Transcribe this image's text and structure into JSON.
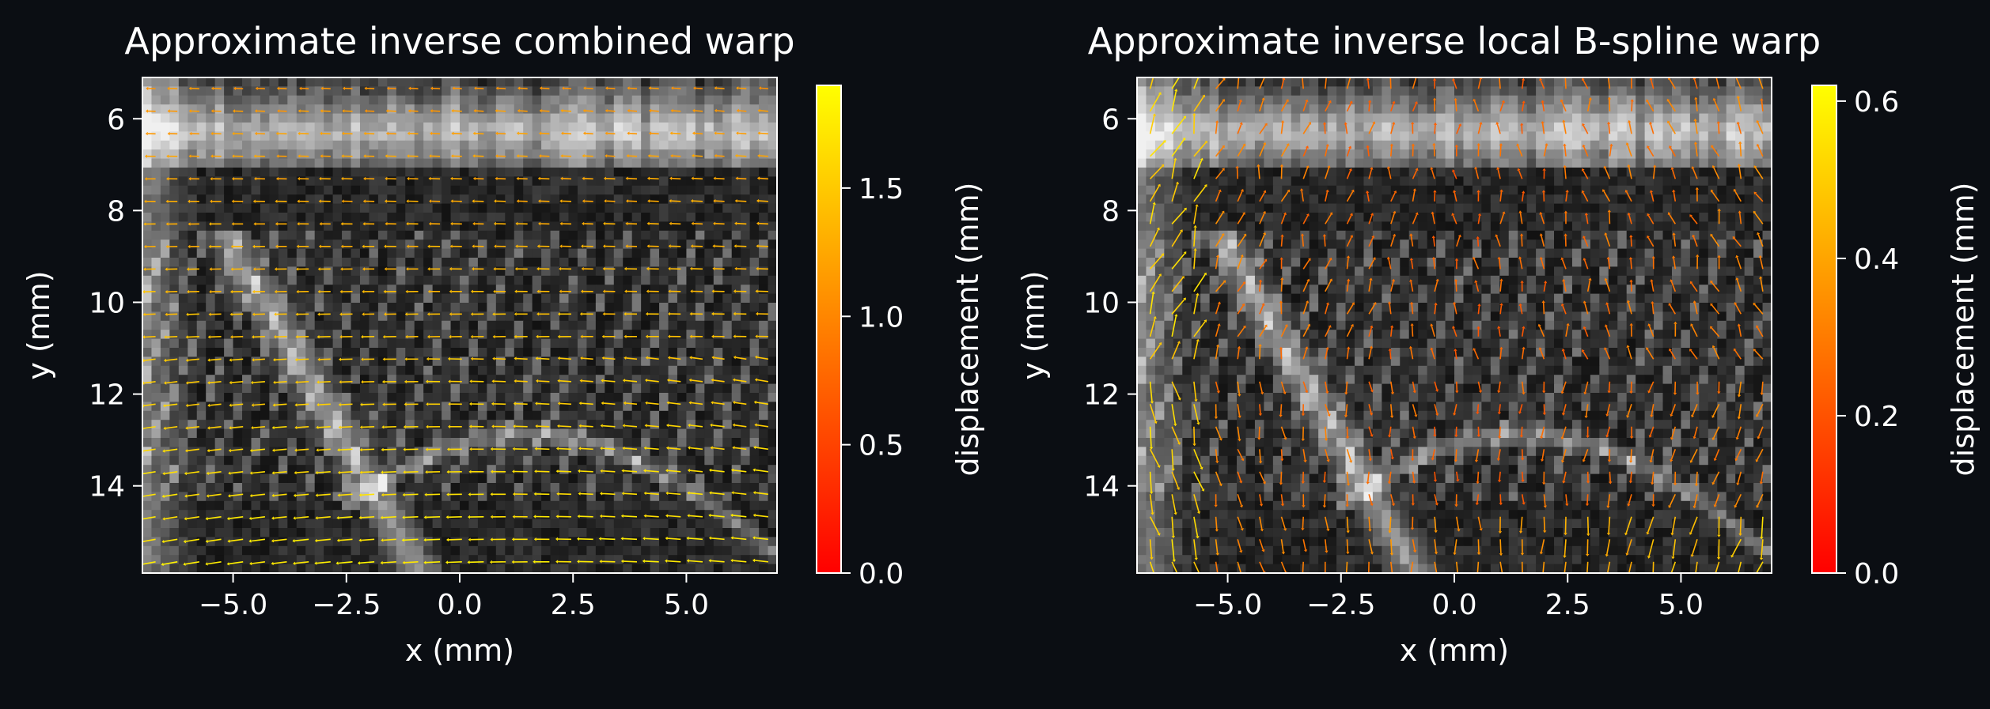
{
  "chart_data": [
    {
      "type": "heatmap",
      "title": "Approximate inverse combined warp",
      "xlabel": "x (mm)",
      "ylabel": "y (mm)",
      "xlim": [
        -7,
        7
      ],
      "ylim": [
        15.9,
        5.1
      ],
      "x_ticks": [
        -5.0,
        -2.5,
        0.0,
        2.5,
        5.0
      ],
      "x_tick_labels": [
        "−5.0",
        "−2.5",
        "0.0",
        "2.5",
        "5.0"
      ],
      "y_ticks": [
        6,
        8,
        10,
        12,
        14
      ],
      "y_tick_labels": [
        "6",
        "8",
        "10",
        "12",
        "14"
      ],
      "colorbar": {
        "label": "displacement (mm)",
        "range": [
          0.0,
          1.9
        ],
        "ticks": [
          0.0,
          0.5,
          1.0,
          1.5
        ],
        "tick_labels": [
          "0.0",
          "0.5",
          "1.0",
          "1.5"
        ],
        "colormap": "autumn"
      },
      "overlay": "quiver"
    },
    {
      "type": "heatmap",
      "title": "Approximate inverse local B-spline warp",
      "xlabel": "x (mm)",
      "ylabel": "y (mm)",
      "xlim": [
        -7,
        7
      ],
      "ylim": [
        15.9,
        5.1
      ],
      "x_ticks": [
        -5.0,
        -2.5,
        0.0,
        2.5,
        5.0
      ],
      "x_tick_labels": [
        "−5.0",
        "−2.5",
        "0.0",
        "2.5",
        "5.0"
      ],
      "y_ticks": [
        6,
        8,
        10,
        12,
        14
      ],
      "y_tick_labels": [
        "6",
        "8",
        "10",
        "12",
        "14"
      ],
      "colorbar": {
        "label": "displacement (mm)",
        "range": [
          0.0,
          0.62
        ],
        "ticks": [
          0.0,
          0.2,
          0.4,
          0.6
        ],
        "tick_labels": [
          "0.0",
          "0.2",
          "0.4",
          "0.6"
        ],
        "colormap": "autumn"
      },
      "overlay": "quiver"
    }
  ],
  "colors": {
    "background": "#0b0e13",
    "foreground": "#ffffff",
    "colormap_low": "#ff0000",
    "colormap_high": "#ffff00"
  }
}
